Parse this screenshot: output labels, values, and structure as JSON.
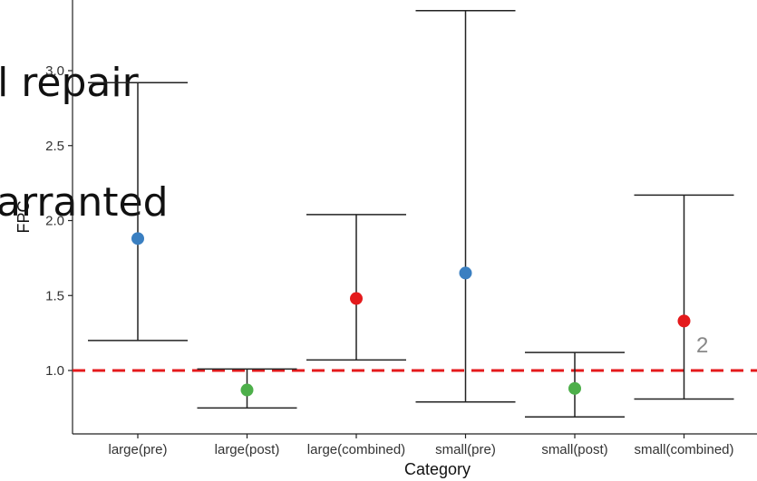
{
  "overlay": {
    "line1": "el repair",
    "line2": "varranted"
  },
  "chart_data": {
    "type": "errorbar",
    "xlabel": "Category",
    "ylabel": "FPC",
    "categories": [
      "large(pre)",
      "large(post)",
      "large(combined)",
      "small(pre)",
      "small(post)",
      "small(combined)"
    ],
    "points": [
      {
        "category": "large(pre)",
        "estimate": 1.88,
        "lower": 1.2,
        "upper": 2.92,
        "color": "#3a7fc1"
      },
      {
        "category": "large(post)",
        "estimate": 0.87,
        "lower": 0.75,
        "upper": 1.01,
        "color": "#4daf4a"
      },
      {
        "category": "large(combined)",
        "estimate": 1.48,
        "lower": 1.07,
        "upper": 2.04,
        "color": "#e41a1c"
      },
      {
        "category": "small(pre)",
        "estimate": 1.65,
        "lower": 0.79,
        "upper": 3.4,
        "color": "#3a7fc1"
      },
      {
        "category": "small(post)",
        "estimate": 0.88,
        "lower": 0.69,
        "upper": 1.12,
        "color": "#4daf4a"
      },
      {
        "category": "small(combined)",
        "estimate": 1.33,
        "lower": 0.81,
        "upper": 2.17,
        "color": "#e41a1c"
      }
    ],
    "yticks": [
      1.0,
      1.5,
      2.0,
      2.5,
      3.0
    ],
    "ytick_labels": [
      "1.0",
      "1.5",
      "2.0",
      "2.5",
      "3.0"
    ],
    "ylim": [
      0.63,
      3.43
    ],
    "reference_line": {
      "y": 1.0,
      "color": "#e41a1c",
      "style": "dashed"
    },
    "annotation": "2",
    "grid": false
  }
}
